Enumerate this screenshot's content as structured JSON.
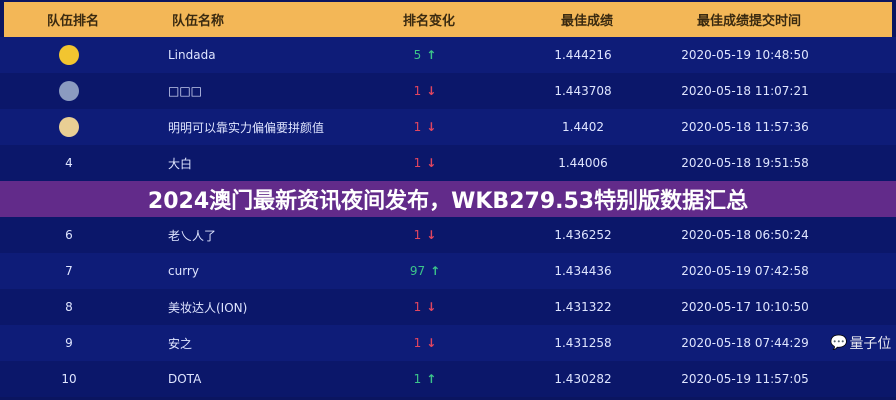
{
  "header": {
    "rank": "队伍排名",
    "name": "队伍名称",
    "change": "排名变化",
    "score": "最佳成绩",
    "time": "最佳成绩提交时间"
  },
  "rows": [
    {
      "rank": "1",
      "medal": "gold",
      "name": "Lindada",
      "change": "5",
      "dir": "up",
      "score": "1.444216",
      "time": "2020-05-19 10:48:50"
    },
    {
      "rank": "2",
      "medal": "silver",
      "name": "□□□",
      "change": "1",
      "dir": "down",
      "score": "1.443708",
      "time": "2020-05-18 11:07:21"
    },
    {
      "rank": "3",
      "medal": "bronze",
      "name": "明明可以靠实力偏偏要拼颜值",
      "change": "1",
      "dir": "down",
      "score": "1.4402",
      "time": "2020-05-18 11:57:36"
    },
    {
      "rank": "4",
      "name": "大白",
      "change": "1",
      "dir": "down",
      "score": "1.44006",
      "time": "2020-05-18 19:51:58"
    },
    {
      "rank": "",
      "name": "",
      "change": "",
      "dir": "down",
      "score": "",
      "time": ""
    },
    {
      "rank": "6",
      "name": "老乀人了",
      "change": "1",
      "dir": "down",
      "score": "1.436252",
      "time": "2020-05-18 06:50:24"
    },
    {
      "rank": "7",
      "name": "curry",
      "change": "97",
      "dir": "up",
      "score": "1.434436",
      "time": "2020-05-19 07:42:58"
    },
    {
      "rank": "8",
      "name": "美妆达人(ION)",
      "change": "1",
      "dir": "down",
      "score": "1.431322",
      "time": "2020-05-17 10:10:50"
    },
    {
      "rank": "9",
      "name": "安之",
      "change": "1",
      "dir": "down",
      "score": "1.431258",
      "time": "2020-05-18 07:44:29"
    },
    {
      "rank": "10",
      "name": "DOTA",
      "change": "1",
      "dir": "up",
      "score": "1.430282",
      "time": "2020-05-19 11:57:05"
    }
  ],
  "banner": "2024澳门最新资讯夜间发布，WKB279.53特别版数据汇总",
  "watermark": "量子位",
  "colors": {
    "header": "#f3b757",
    "up": "#3cc48a",
    "down": "#e0455f",
    "banner": "#682c8c"
  }
}
